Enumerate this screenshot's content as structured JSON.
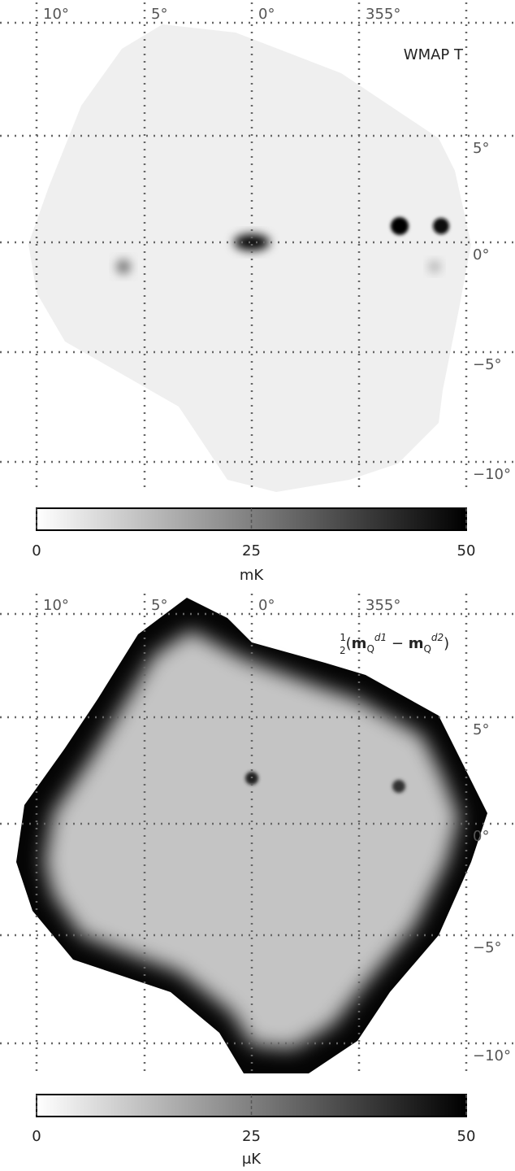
{
  "panels": [
    {
      "label": {
        "parts": [
          "WMAP T"
        ]
      },
      "lon_labels": [
        "10°",
        "5°",
        "0°",
        "355°"
      ],
      "lat_labels": [
        "5°",
        "0°",
        "−5°",
        "−10°"
      ],
      "colorbar": {
        "lim": [
          0,
          50
        ],
        "ticks": [
          0,
          25,
          50
        ],
        "unit": "mK"
      }
    },
    {
      "label": {
        "parts": [
          "1",
          "2",
          "(",
          "m",
          "Q",
          "d1",
          " − ",
          "m",
          "Q",
          "d2",
          ")"
        ]
      },
      "lon_labels": [
        "10°",
        "5°",
        "0°",
        "355°"
      ],
      "lat_labels": [
        "5°",
        "0°",
        "−5°",
        "−10°"
      ],
      "colorbar": {
        "lim": [
          0,
          50
        ],
        "ticks": [
          0,
          25,
          50
        ],
        "unit": "μK"
      }
    }
  ]
}
